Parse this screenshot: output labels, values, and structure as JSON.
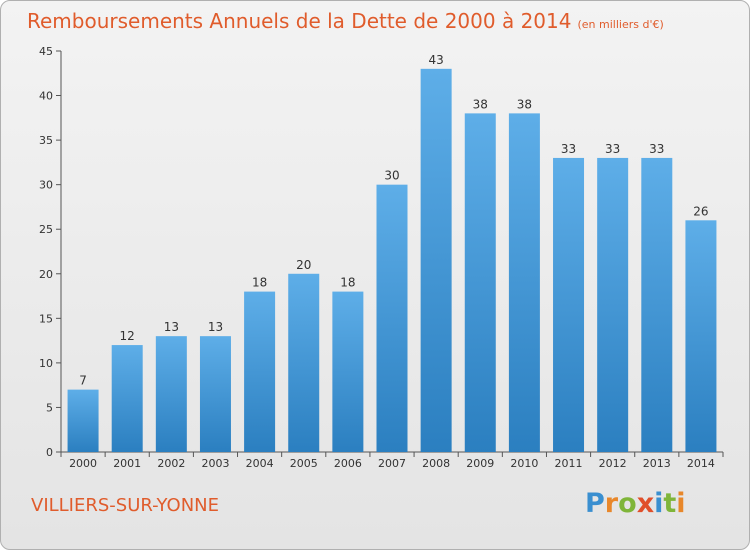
{
  "title": "Remboursements Annuels de la Dette de 2000 à 2014",
  "subtitle": "(en milliers d'€)",
  "town": "VILLIERS-SUR-YONNE",
  "logo": {
    "text": "Proxiti",
    "letters": [
      {
        "ch": "P",
        "color": "#3a8fd0"
      },
      {
        "ch": "r",
        "color": "#e8872a"
      },
      {
        "ch": "o",
        "color": "#7fb539"
      },
      {
        "ch": "x",
        "color": "#e04f2a"
      },
      {
        "ch": "i",
        "color": "#3a8fd0"
      },
      {
        "ch": "t",
        "color": "#7fb539"
      },
      {
        "ch": "i",
        "color": "#e8872a"
      }
    ]
  },
  "colors": {
    "accent": "#e05c2c",
    "bar_top": "#5eaee8",
    "bar_bottom": "#2b7fc0"
  },
  "chart_data": {
    "type": "bar",
    "categories": [
      "2000",
      "2001",
      "2002",
      "2003",
      "2004",
      "2005",
      "2006",
      "2007",
      "2008",
      "2009",
      "2010",
      "2011",
      "2012",
      "2013",
      "2014"
    ],
    "values": [
      7,
      12,
      13,
      13,
      18,
      20,
      18,
      30,
      43,
      38,
      38,
      33,
      33,
      33,
      26
    ],
    "title": "Remboursements Annuels de la Dette de 2000 à 2014",
    "xlabel": "",
    "ylabel": "",
    "ylim": [
      0,
      45
    ],
    "yticks": [
      0,
      5,
      10,
      15,
      20,
      25,
      30,
      35,
      40,
      45
    ],
    "grid": false
  }
}
